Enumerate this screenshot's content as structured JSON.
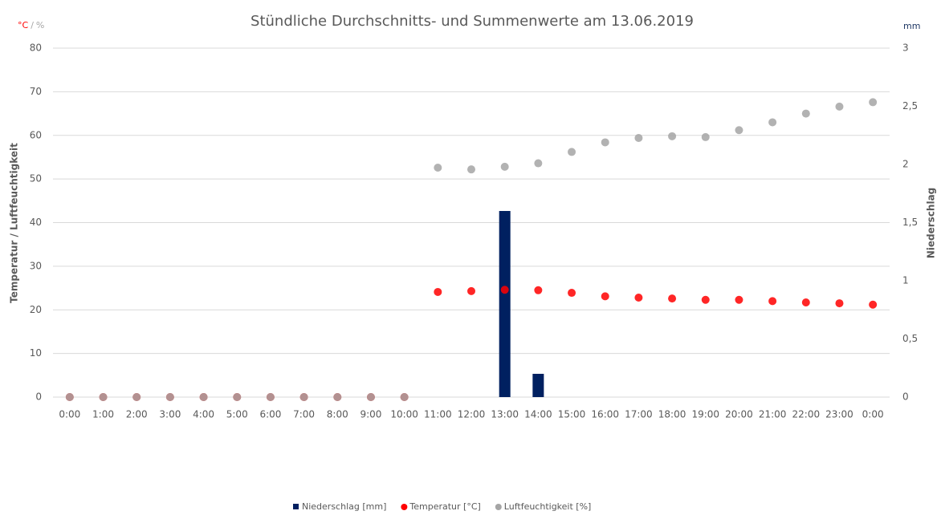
{
  "chart_data": {
    "type": "bar-scatter",
    "title": "Stündliche Durchschnitts- und Summenwerte am 13.06.2019",
    "y_unit_labels": [
      {
        "text": "°C",
        "color": "#ff0000"
      },
      {
        "text": "/",
        "color": "#a5a5a5"
      },
      {
        "text": "%",
        "color": "#a5a5a5"
      }
    ],
    "y2_unit_label": {
      "text": "mm",
      "color": "#1f3864"
    },
    "ylabel": "Temperatur / Luftfeuchtigkeit",
    "y2label": "Niederschlag",
    "categories": [
      "0:00",
      "1:00",
      "2:00",
      "3:00",
      "4:00",
      "5:00",
      "6:00",
      "7:00",
      "8:00",
      "9:00",
      "10:00",
      "11:00",
      "12:00",
      "13:00",
      "14:00",
      "15:00",
      "16:00",
      "17:00",
      "18:00",
      "19:00",
      "20:00",
      "21:00",
      "22:00",
      "23:00",
      "0:00"
    ],
    "series": [
      {
        "name": "Niederschlag [mm]",
        "type": "bar",
        "axis": "y2",
        "color": "#002060",
        "values": [
          0,
          0,
          0,
          0,
          0,
          0,
          0,
          0,
          0,
          0,
          0,
          0,
          0,
          1.6,
          0.2,
          0,
          0,
          0,
          0,
          0,
          0,
          0,
          0,
          0,
          0
        ]
      },
      {
        "name": "Temperatur [°C]",
        "type": "scatter",
        "color": "#ff0000",
        "values": [
          0,
          0,
          0,
          0,
          0,
          0,
          0,
          0,
          0,
          0,
          0,
          24.1,
          24.3,
          24.6,
          24.5,
          23.9,
          23.1,
          22.8,
          22.6,
          22.3,
          22.3,
          22.0,
          21.7,
          21.5,
          21.2
        ]
      },
      {
        "name": "Luftfeuchtigkeit [%]",
        "type": "scatter",
        "color": "#a5a5a5",
        "values": [
          0,
          0,
          0,
          0,
          0,
          0,
          0,
          0,
          0,
          0,
          0,
          52.6,
          52.2,
          52.8,
          53.6,
          56.2,
          58.4,
          59.4,
          59.8,
          59.6,
          61.2,
          63.0,
          65.0,
          66.6,
          67.6
        ]
      }
    ],
    "ylim": [
      0,
      80
    ],
    "yticks": [
      0,
      10,
      20,
      30,
      40,
      50,
      60,
      70,
      80
    ],
    "y2lim": [
      0,
      3
    ],
    "y2ticks": [
      0,
      {
        "value": 0.5,
        "label": "0,5"
      },
      1,
      {
        "value": 1.5,
        "label": "1,5"
      },
      2,
      {
        "value": 2.5,
        "label": "2,5"
      },
      3
    ],
    "grid": true,
    "legend": "bottom"
  }
}
